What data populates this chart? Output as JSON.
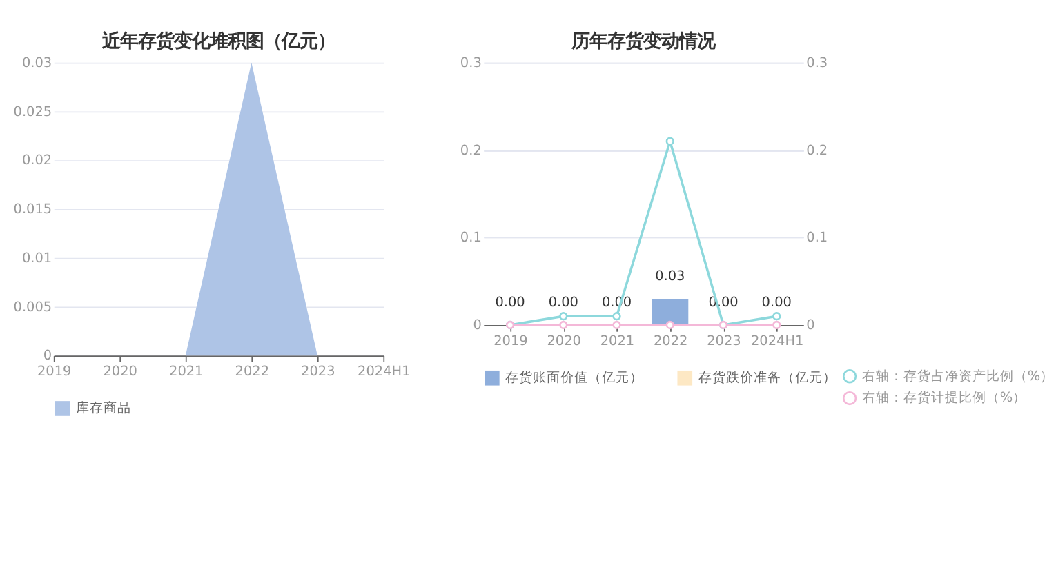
{
  "chart_data": [
    {
      "type": "area",
      "title": "近年存货变化堆积图（亿元）",
      "categories": [
        "2019",
        "2020",
        "2021",
        "2022",
        "2023",
        "2024H1"
      ],
      "series": [
        {
          "name": "库存商品",
          "color": "#aec4e6",
          "values": [
            0,
            0,
            0,
            0.03,
            0,
            0
          ]
        }
      ],
      "ylim": [
        0,
        0.03
      ],
      "yticks": [
        0,
        0.005,
        0.01,
        0.015,
        0.02,
        0.025,
        0.03
      ],
      "grid": "y",
      "legend": "bottom"
    },
    {
      "type": "bar",
      "title": "历年存货变动情况",
      "categories": [
        "2019",
        "2020",
        "2021",
        "2022",
        "2023",
        "2024H1"
      ],
      "series": [
        {
          "name": "存货账面价值（亿元）",
          "color": "#8eaedc",
          "values": [
            0,
            0,
            0,
            0.03,
            0,
            0
          ],
          "value_labels": [
            "0.00",
            "0.00",
            "0.00",
            "0.03",
            "0.00",
            "0.00"
          ]
        },
        {
          "name": "存货跌价准备（亿元）",
          "color": "#fde8c4",
          "values": [
            0,
            0,
            0,
            0,
            0,
            0
          ]
        },
        {
          "name": "右轴：存货占净资产比例（%）",
          "type": "line",
          "axis": "y2",
          "color": "#8dd8dc",
          "values": [
            0,
            0.01,
            0.01,
            0.21,
            0,
            0.01
          ]
        },
        {
          "name": "右轴：存货计提比例（%）",
          "type": "line",
          "axis": "y2",
          "color": "#f4b8d8",
          "values": [
            0,
            0,
            0,
            0,
            0,
            0
          ]
        }
      ],
      "ylim": [
        0,
        0.3
      ],
      "yticks": [
        0,
        0.1,
        0.2,
        0.3
      ],
      "y2lim": [
        0,
        0.3
      ],
      "y2ticks": [
        0,
        0.1,
        0.2,
        0.3
      ],
      "grid": "y",
      "legend": "bottom",
      "marker": "circle"
    }
  ]
}
